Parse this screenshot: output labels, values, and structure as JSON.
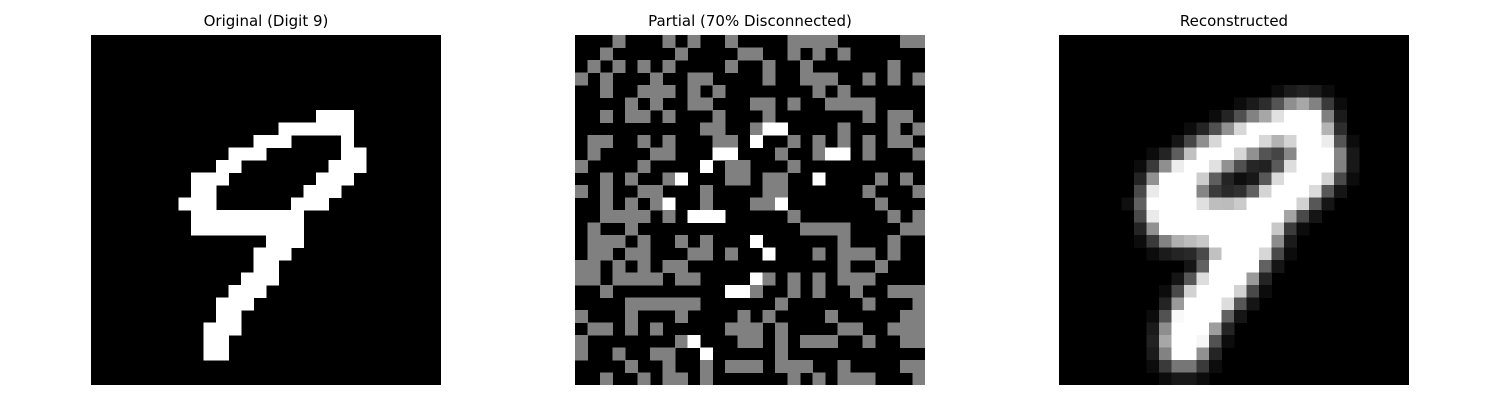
{
  "panels": [
    {
      "id": "original",
      "title": "Original (Digit 9)"
    },
    {
      "id": "partial",
      "title": "Partial (70% Disconnected)"
    },
    {
      "id": "reconstructed",
      "title": "Reconstructed"
    }
  ],
  "colors": {
    "background": "#ffffff",
    "image_background": "#000000",
    "on_pixel": "#ffffff",
    "disconnected_pixel": "#808080"
  }
}
